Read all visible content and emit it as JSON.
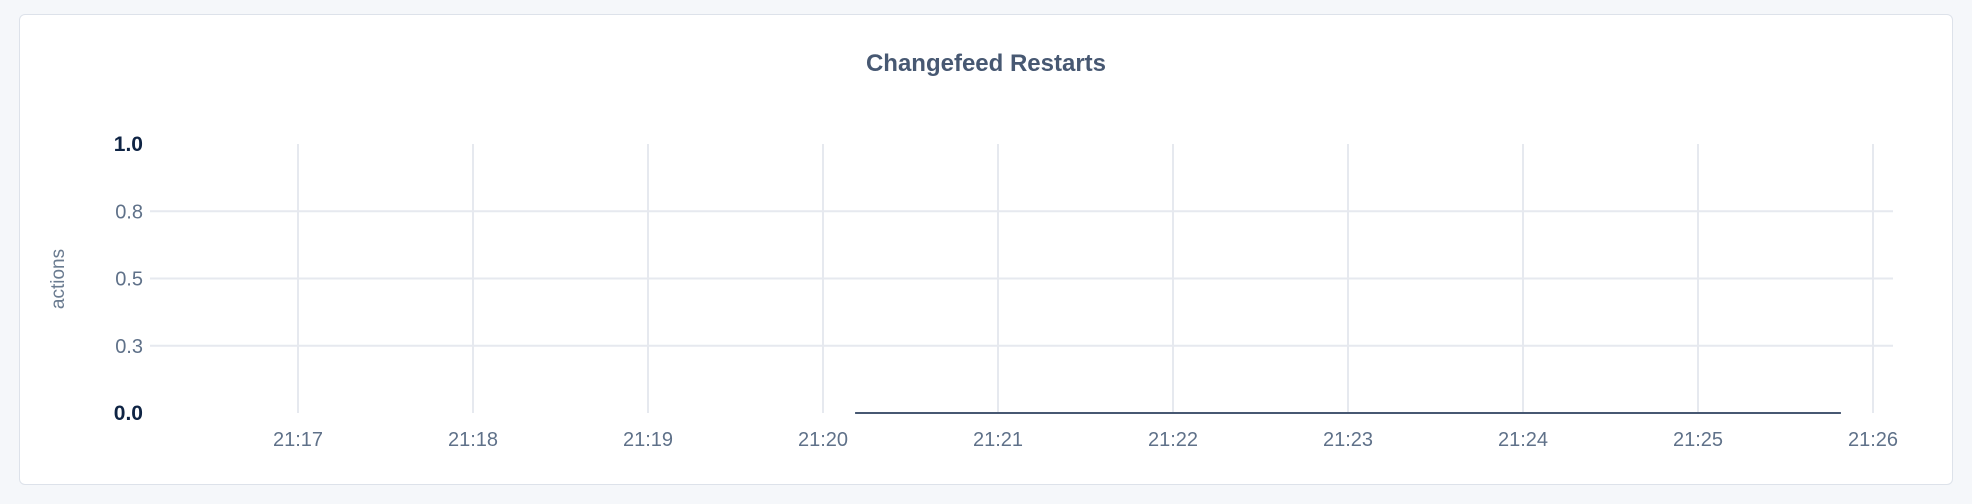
{
  "chart_data": {
    "type": "line",
    "title": "Changefeed Restarts",
    "xlabel": "",
    "ylabel": "actions",
    "x_ticks": [
      "21:17",
      "21:18",
      "21:19",
      "21:20",
      "21:21",
      "21:22",
      "21:23",
      "21:24",
      "21:25",
      "21:26"
    ],
    "y_ticks": [
      {
        "value": 0,
        "label": "0.0"
      },
      {
        "value": 0.25,
        "label": "0.3"
      },
      {
        "value": 0.5,
        "label": "0.5"
      },
      {
        "value": 0.75,
        "label": "0.8"
      },
      {
        "value": 1,
        "label": "1.0"
      }
    ],
    "ylim": [
      0,
      1
    ],
    "xlim": [
      "21:16:08",
      "21:26:08"
    ],
    "grid": true,
    "series": [
      {
        "color": "#475872",
        "x": [
          "21:20:11",
          "21:25:49"
        ],
        "y": [
          0,
          0
        ]
      }
    ]
  }
}
